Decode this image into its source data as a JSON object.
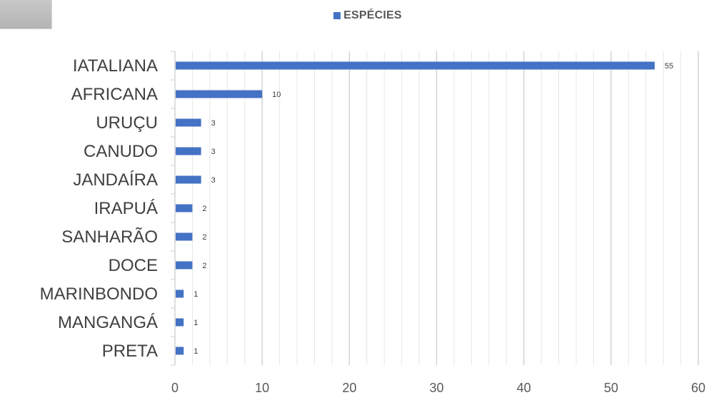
{
  "chart_data": {
    "type": "bar",
    "orientation": "horizontal",
    "categories": [
      "IATALIANA",
      "AFRICANA",
      "URUÇU",
      "CANUDO",
      "JANDAÍRA",
      "IRAPUÁ",
      "SANHARÃO",
      "DOCE",
      "MARINBONDO",
      "MANGANGÁ",
      "PRETA"
    ],
    "series": [
      {
        "name": "ESPÉCIES",
        "values": [
          55,
          10,
          3,
          3,
          3,
          2,
          2,
          2,
          1,
          1,
          1
        ],
        "color": "#4472c4"
      }
    ],
    "xlim": [
      0,
      60
    ],
    "xticks": [
      0,
      10,
      20,
      30,
      40,
      50,
      60
    ],
    "legend_position": "top",
    "grid": true,
    "data_labels": true
  }
}
